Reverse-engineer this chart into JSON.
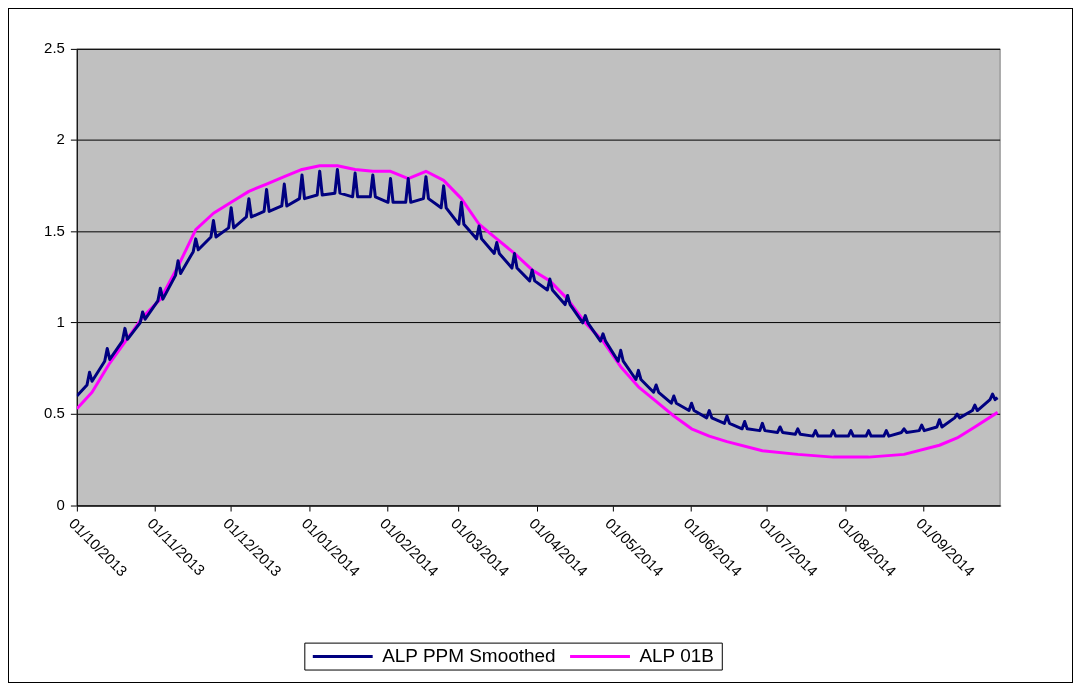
{
  "chart_data": {
    "type": "line",
    "xlim": [
      "2013-10-01",
      "2014-10-01"
    ],
    "ylim": [
      0,
      2.5
    ],
    "xticks": [
      {
        "value": "2013-10-01",
        "label": "01/10/2013"
      },
      {
        "value": "2013-11-01",
        "label": "01/11/2013"
      },
      {
        "value": "2013-12-01",
        "label": "01/12/2013"
      },
      {
        "value": "2014-01-01",
        "label": "01/01/2014"
      },
      {
        "value": "2014-02-01",
        "label": "01/02/2014"
      },
      {
        "value": "2014-03-01",
        "label": "01/03/2014"
      },
      {
        "value": "2014-04-01",
        "label": "01/04/2014"
      },
      {
        "value": "2014-05-01",
        "label": "01/05/2014"
      },
      {
        "value": "2014-06-01",
        "label": "01/06/2014"
      },
      {
        "value": "2014-07-01",
        "label": "01/07/2014"
      },
      {
        "value": "2014-08-01",
        "label": "01/08/2014"
      },
      {
        "value": "2014-09-01",
        "label": "01/09/2014"
      }
    ],
    "yticks": [
      0,
      0.5,
      1,
      1.5,
      2,
      2.5
    ],
    "grid": "y",
    "legend": "bottom",
    "series": [
      {
        "name": "ALP PPM Smoothed",
        "color": "#000080",
        "x": [
          "2013-10-01",
          "2013-10-05",
          "2013-10-06",
          "2013-10-07",
          "2013-10-12",
          "2013-10-13",
          "2013-10-14",
          "2013-10-19",
          "2013-10-20",
          "2013-10-21",
          "2013-10-26",
          "2013-10-27",
          "2013-10-28",
          "2013-11-02",
          "2013-11-03",
          "2013-11-04",
          "2013-11-09",
          "2013-11-10",
          "2013-11-11",
          "2013-11-16",
          "2013-11-17",
          "2013-11-18",
          "2013-11-23",
          "2013-11-24",
          "2013-11-25",
          "2013-11-30",
          "2013-12-01",
          "2013-12-02",
          "2013-12-07",
          "2013-12-08",
          "2013-12-09",
          "2013-12-14",
          "2013-12-15",
          "2013-12-16",
          "2013-12-21",
          "2013-12-22",
          "2013-12-23",
          "2013-12-28",
          "2013-12-29",
          "2013-12-30",
          "2014-01-04",
          "2014-01-05",
          "2014-01-06",
          "2014-01-11",
          "2014-01-12",
          "2014-01-13",
          "2014-01-18",
          "2014-01-19",
          "2014-01-20",
          "2014-01-25",
          "2014-01-26",
          "2014-01-27",
          "2014-02-01",
          "2014-02-02",
          "2014-02-03",
          "2014-02-08",
          "2014-02-09",
          "2014-02-10",
          "2014-02-15",
          "2014-02-16",
          "2014-02-17",
          "2014-02-22",
          "2014-02-23",
          "2014-02-24",
          "2014-03-01",
          "2014-03-02",
          "2014-03-03",
          "2014-03-08",
          "2014-03-09",
          "2014-03-10",
          "2014-03-15",
          "2014-03-16",
          "2014-03-17",
          "2014-03-22",
          "2014-03-23",
          "2014-03-24",
          "2014-03-29",
          "2014-03-30",
          "2014-03-31",
          "2014-04-05",
          "2014-04-06",
          "2014-04-07",
          "2014-04-12",
          "2014-04-13",
          "2014-04-14",
          "2014-04-19",
          "2014-04-20",
          "2014-04-21",
          "2014-04-26",
          "2014-04-27",
          "2014-04-28",
          "2014-05-03",
          "2014-05-04",
          "2014-05-05",
          "2014-05-10",
          "2014-05-11",
          "2014-05-12",
          "2014-05-17",
          "2014-05-18",
          "2014-05-19",
          "2014-05-24",
          "2014-05-25",
          "2014-05-26",
          "2014-05-31",
          "2014-06-01",
          "2014-06-02",
          "2014-06-07",
          "2014-06-08",
          "2014-06-09",
          "2014-06-14",
          "2014-06-15",
          "2014-06-16",
          "2014-06-21",
          "2014-06-22",
          "2014-06-23",
          "2014-06-28",
          "2014-06-29",
          "2014-06-30",
          "2014-07-05",
          "2014-07-06",
          "2014-07-07",
          "2014-07-12",
          "2014-07-13",
          "2014-07-14",
          "2014-07-19",
          "2014-07-20",
          "2014-07-21",
          "2014-07-26",
          "2014-07-27",
          "2014-07-28",
          "2014-08-02",
          "2014-08-03",
          "2014-08-04",
          "2014-08-09",
          "2014-08-10",
          "2014-08-11",
          "2014-08-16",
          "2014-08-17",
          "2014-08-18",
          "2014-08-23",
          "2014-08-24",
          "2014-08-25",
          "2014-08-30",
          "2014-08-31",
          "2014-09-01",
          "2014-09-06",
          "2014-09-07",
          "2014-09-08",
          "2014-09-13",
          "2014-09-14",
          "2014-09-15",
          "2014-09-20",
          "2014-09-21",
          "2014-09-22",
          "2014-09-27",
          "2014-09-28",
          "2014-09-29",
          "2014-09-30"
        ],
        "values": [
          0.6,
          0.66,
          0.73,
          0.68,
          0.79,
          0.86,
          0.8,
          0.9,
          0.97,
          0.91,
          1.0,
          1.06,
          1.02,
          1.12,
          1.19,
          1.13,
          1.26,
          1.34,
          1.27,
          1.39,
          1.46,
          1.4,
          1.47,
          1.56,
          1.47,
          1.52,
          1.63,
          1.52,
          1.58,
          1.68,
          1.58,
          1.61,
          1.73,
          1.61,
          1.64,
          1.76,
          1.64,
          1.68,
          1.81,
          1.68,
          1.7,
          1.83,
          1.7,
          1.71,
          1.84,
          1.71,
          1.69,
          1.82,
          1.69,
          1.69,
          1.81,
          1.69,
          1.66,
          1.79,
          1.66,
          1.66,
          1.79,
          1.66,
          1.68,
          1.8,
          1.68,
          1.63,
          1.75,
          1.63,
          1.54,
          1.66,
          1.54,
          1.46,
          1.53,
          1.46,
          1.38,
          1.44,
          1.38,
          1.3,
          1.38,
          1.3,
          1.23,
          1.29,
          1.23,
          1.18,
          1.24,
          1.18,
          1.1,
          1.15,
          1.1,
          1.0,
          1.04,
          1.0,
          0.9,
          0.94,
          0.9,
          0.79,
          0.85,
          0.79,
          0.69,
          0.74,
          0.69,
          0.62,
          0.66,
          0.62,
          0.56,
          0.6,
          0.56,
          0.52,
          0.56,
          0.52,
          0.48,
          0.52,
          0.48,
          0.45,
          0.49,
          0.45,
          0.42,
          0.46,
          0.42,
          0.41,
          0.45,
          0.41,
          0.4,
          0.43,
          0.4,
          0.39,
          0.42,
          0.39,
          0.38,
          0.41,
          0.38,
          0.38,
          0.41,
          0.38,
          0.38,
          0.41,
          0.38,
          0.38,
          0.41,
          0.38,
          0.38,
          0.41,
          0.38,
          0.4,
          0.42,
          0.4,
          0.41,
          0.44,
          0.41,
          0.43,
          0.47,
          0.43,
          0.48,
          0.5,
          0.48,
          0.52,
          0.55,
          0.52,
          0.58,
          0.61,
          0.58,
          0.59
        ]
      },
      {
        "name": "ALP 01B",
        "color": "#ff00ff",
        "x": [
          "2013-10-01",
          "2013-10-07",
          "2013-10-14",
          "2013-10-27",
          "2013-11-03",
          "2013-11-10",
          "2013-11-17",
          "2013-11-24",
          "2013-12-01",
          "2013-12-08",
          "2013-12-15",
          "2013-12-22",
          "2013-12-29",
          "2014-01-05",
          "2014-01-12",
          "2014-01-19",
          "2014-01-26",
          "2014-02-02",
          "2014-02-09",
          "2014-02-16",
          "2014-02-23",
          "2014-03-02",
          "2014-03-09",
          "2014-03-16",
          "2014-03-23",
          "2014-03-30",
          "2014-04-06",
          "2014-04-13",
          "2014-04-20",
          "2014-04-27",
          "2014-05-04",
          "2014-05-11",
          "2014-05-18",
          "2014-05-25",
          "2014-06-01",
          "2014-06-08",
          "2014-06-15",
          "2014-06-29",
          "2014-07-13",
          "2014-07-27",
          "2014-08-10",
          "2014-08-24",
          "2014-09-07",
          "2014-09-14",
          "2014-09-21",
          "2014-09-30"
        ],
        "values": [
          0.53,
          0.62,
          0.78,
          1.03,
          1.13,
          1.31,
          1.51,
          1.6,
          1.66,
          1.72,
          1.76,
          1.8,
          1.84,
          1.86,
          1.86,
          1.84,
          1.83,
          1.83,
          1.79,
          1.83,
          1.78,
          1.68,
          1.54,
          1.46,
          1.38,
          1.29,
          1.23,
          1.13,
          1.0,
          0.9,
          0.76,
          0.65,
          0.57,
          0.49,
          0.42,
          0.38,
          0.35,
          0.3,
          0.28,
          0.265,
          0.265,
          0.28,
          0.33,
          0.37,
          0.43,
          0.51
        ]
      }
    ]
  }
}
